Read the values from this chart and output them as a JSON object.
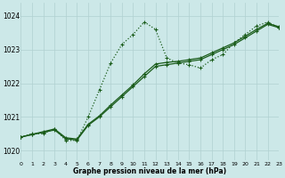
{
  "xlabel": "Graphe pression niveau de la mer (hPa)",
  "xlim": [
    0,
    23
  ],
  "ylim": [
    1019.7,
    1024.4
  ],
  "yticks": [
    1020,
    1021,
    1022,
    1023,
    1024
  ],
  "xticks": [
    0,
    1,
    2,
    3,
    4,
    5,
    6,
    7,
    8,
    9,
    10,
    11,
    12,
    13,
    14,
    15,
    16,
    17,
    18,
    19,
    20,
    21,
    22,
    23
  ],
  "bg_color": "#cce8e8",
  "grid_color": "#b0d0d0",
  "line_color": "#1a5c1a",
  "series_dotted": [
    1020.4,
    1020.5,
    1020.5,
    1020.65,
    1020.3,
    1020.3,
    1021.0,
    1021.8,
    1022.6,
    1023.15,
    1023.45,
    1023.82,
    1023.6,
    1022.75,
    1022.6,
    1022.55,
    1022.45,
    1022.7,
    1022.85,
    1023.2,
    1023.45,
    1023.7,
    1023.82,
    1023.65
  ],
  "series_line1": [
    1020.4,
    1020.47,
    1020.54,
    1020.61,
    1020.35,
    1020.31,
    1020.75,
    1021.0,
    1021.3,
    1021.6,
    1021.9,
    1022.2,
    1022.5,
    1022.55,
    1022.6,
    1022.65,
    1022.7,
    1022.85,
    1023.0,
    1023.15,
    1023.35,
    1023.55,
    1023.75,
    1023.65
  ],
  "series_line2": [
    1020.4,
    1020.48,
    1020.56,
    1020.64,
    1020.38,
    1020.34,
    1020.78,
    1021.03,
    1021.35,
    1021.65,
    1021.95,
    1022.28,
    1022.57,
    1022.62,
    1022.65,
    1022.7,
    1022.75,
    1022.9,
    1023.05,
    1023.2,
    1023.4,
    1023.6,
    1023.78,
    1023.68
  ]
}
